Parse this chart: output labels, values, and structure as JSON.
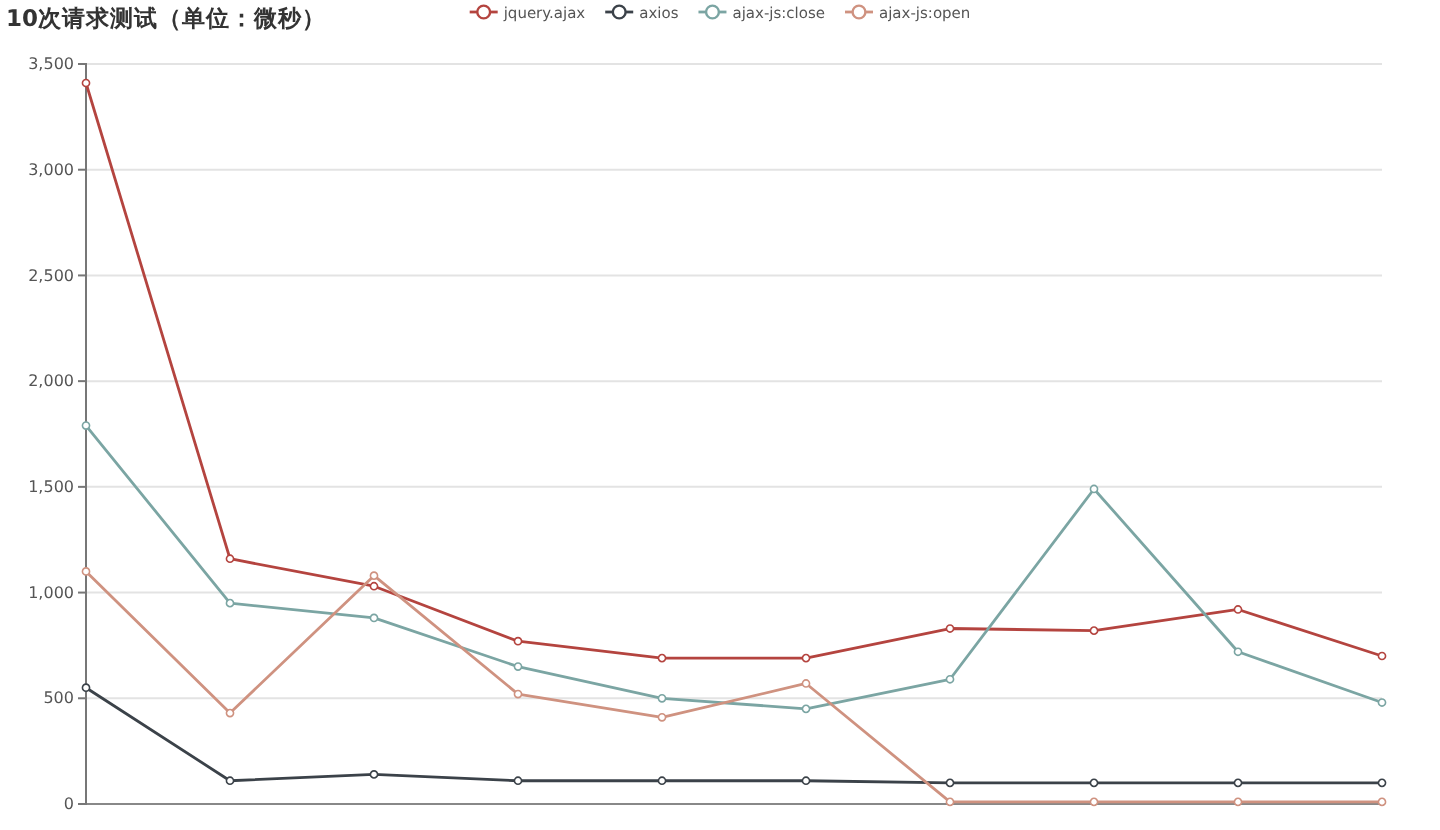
{
  "chart_data": {
    "type": "line",
    "title": "10次请求测试（单位：微秒）",
    "categories": [
      null,
      null,
      null,
      null,
      null,
      null,
      null,
      null,
      null,
      null
    ],
    "series": [
      {
        "name": "jquery.ajax",
        "color": "#b4443f",
        "values": [
          3410,
          1160,
          1030,
          770,
          690,
          690,
          830,
          820,
          920,
          700
        ]
      },
      {
        "name": "axios",
        "color": "#3b4249",
        "values": [
          550,
          110,
          140,
          110,
          110,
          110,
          100,
          100,
          100,
          100
        ]
      },
      {
        "name": "ajax-js:close",
        "color": "#7ba5a3",
        "values": [
          1790,
          950,
          880,
          650,
          500,
          450,
          590,
          1490,
          720,
          480
        ]
      },
      {
        "name": "ajax-js:open",
        "color": "#cf9280",
        "values": [
          1100,
          430,
          1080,
          520,
          410,
          570,
          10,
          10,
          10,
          10
        ]
      }
    ],
    "ylim": [
      0,
      3500
    ],
    "yticks": [
      {
        "value": 0,
        "label": "0"
      },
      {
        "value": 500,
        "label": "500"
      },
      {
        "value": 1000,
        "label": "1,000"
      },
      {
        "value": 1500,
        "label": "1,500"
      },
      {
        "value": 2000,
        "label": "2,000"
      },
      {
        "value": 2500,
        "label": "2,500"
      },
      {
        "value": 3000,
        "label": "3,000"
      },
      {
        "value": 3500,
        "label": "3,500"
      }
    ],
    "grid": "y",
    "legend": "top",
    "tick_labels": "y",
    "marker": "circle"
  }
}
